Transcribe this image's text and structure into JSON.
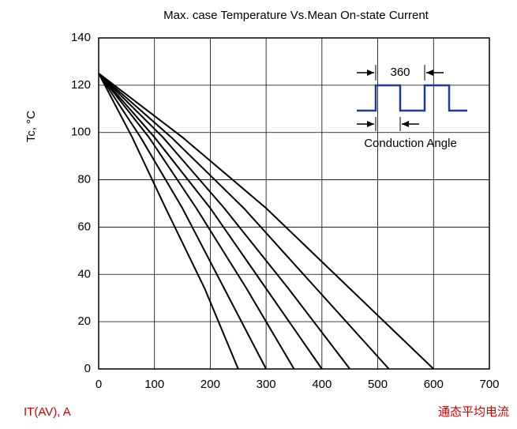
{
  "chart_data": {
    "type": "line",
    "title": "Max. case Temperature Vs.Mean On-state Current",
    "y_label": "Tc, °C",
    "x_label": "IT(AV), A",
    "x_label_cn": "通态平均电流",
    "inset_period_label": "360",
    "inset_conduction_label": "Conduction Angle",
    "xlim": [
      0,
      700
    ],
    "xticks": [
      0,
      100,
      200,
      300,
      400,
      500,
      600,
      700
    ],
    "ylim": [
      0,
      140
    ],
    "yticks": [
      0,
      20,
      40,
      60,
      80,
      100,
      120,
      140
    ],
    "grid": true,
    "series": [
      {
        "color": "#000000",
        "x": [
          0,
          60,
          120,
          190,
          250
        ],
        "values": [
          125,
          98,
          68,
          34,
          0
        ]
      },
      {
        "color": "#000000",
        "x": [
          0,
          75,
          150,
          225,
          300
        ],
        "values": [
          125,
          98,
          68,
          34,
          0
        ]
      },
      {
        "color": "#000000",
        "x": [
          0,
          90,
          175,
          265,
          350
        ],
        "values": [
          125,
          98,
          68,
          34,
          0
        ]
      },
      {
        "color": "#000000",
        "x": [
          0,
          100,
          200,
          300,
          400
        ],
        "values": [
          125,
          98,
          68,
          34,
          0
        ]
      },
      {
        "color": "#000000",
        "x": [
          0,
          115,
          225,
          340,
          450
        ],
        "values": [
          125,
          98,
          68,
          34,
          0
        ]
      },
      {
        "color": "#000000",
        "x": [
          0,
          130,
          260,
          390,
          520
        ],
        "values": [
          125,
          98,
          68,
          34,
          0
        ]
      },
      {
        "color": "#000000",
        "x": [
          0,
          150,
          300,
          450,
          600
        ],
        "values": [
          125,
          98,
          68,
          34,
          0
        ]
      }
    ]
  }
}
